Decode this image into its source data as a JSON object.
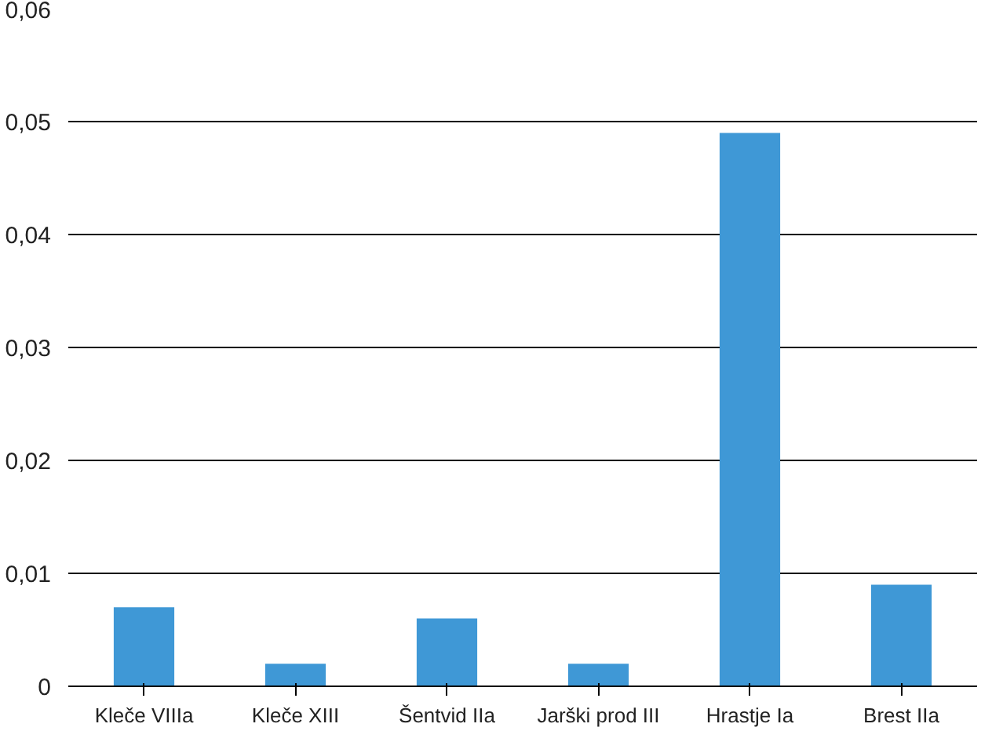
{
  "chart_data": {
    "type": "bar",
    "categories": [
      "Kleče VIIIa",
      "Kleče XIII",
      "Šentvid IIa",
      "Jarški prod III",
      "Hrastje Ia",
      "Brest IIa"
    ],
    "values": [
      0.007,
      0.002,
      0.006,
      0.002,
      0.049,
      0.009
    ],
    "color": "#3f98d6",
    "ylim": [
      0,
      0.06
    ],
    "yticks": [
      0,
      {
        "value": 0.01,
        "label": "0,01"
      },
      {
        "value": 0.02,
        "label": "0,02"
      },
      {
        "value": 0.03,
        "label": "0,03"
      },
      {
        "value": 0.04,
        "label": "0,04"
      },
      {
        "value": 0.05,
        "label": "0,05"
      },
      {
        "value": 0.06,
        "label": "0,06"
      }
    ],
    "grid": "y"
  }
}
